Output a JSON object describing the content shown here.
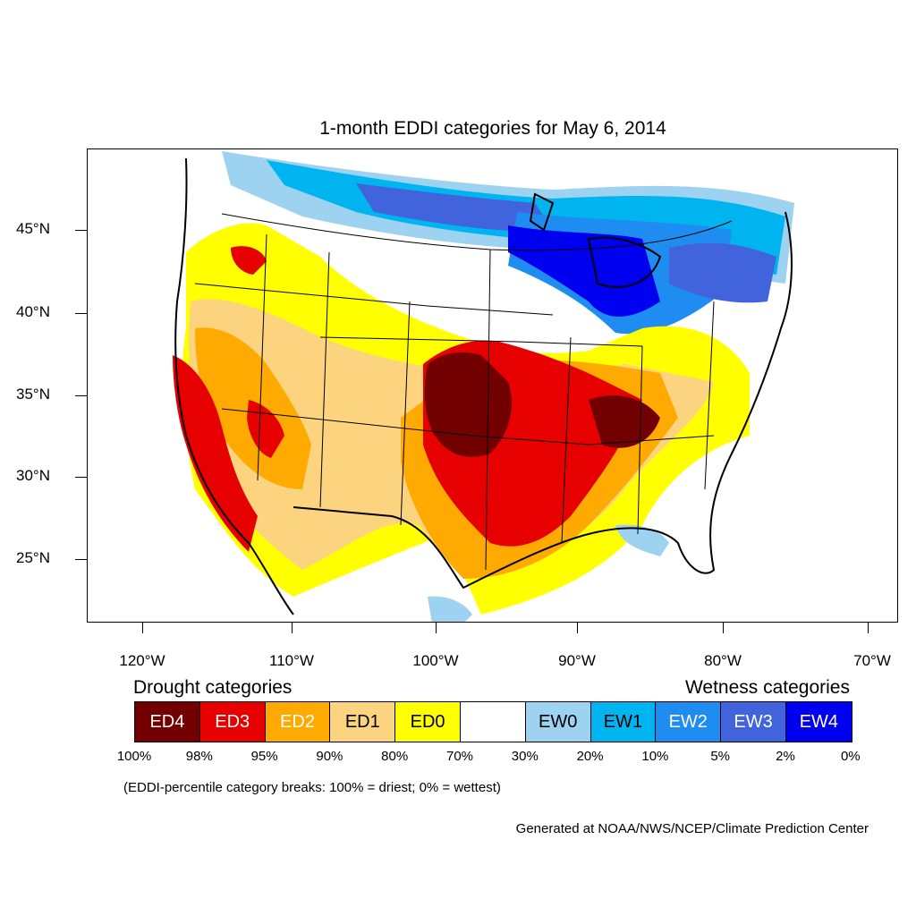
{
  "title": "1-month EDDI categories for May 6, 2014",
  "latitude_labels": [
    "45°N",
    "40°N",
    "35°N",
    "30°N",
    "25°N"
  ],
  "longitude_labels": [
    "120°W",
    "110°W",
    "100°W",
    "90°W",
    "80°W",
    "70°W"
  ],
  "legend": {
    "drought_heading": "Drought categories",
    "wetness_heading": "Wetness categories",
    "categories": [
      {
        "label": "ED4",
        "color": "#730000",
        "text_color": "#ffffff"
      },
      {
        "label": "ED3",
        "color": "#e60000",
        "text_color": "#ffffff"
      },
      {
        "label": "ED2",
        "color": "#ffaa00",
        "text_color": "#ffffff"
      },
      {
        "label": "ED1",
        "color": "#fcd37f",
        "text_color": "#000000"
      },
      {
        "label": "ED0",
        "color": "#ffff00",
        "text_color": "#000000"
      },
      {
        "label": "",
        "color": "#ffffff",
        "text_color": "#000000"
      },
      {
        "label": "EW0",
        "color": "#9dd2f0",
        "text_color": "#000000"
      },
      {
        "label": "EW1",
        "color": "#00b4f0",
        "text_color": "#000000"
      },
      {
        "label": "EW2",
        "color": "#1e8cf0",
        "text_color": "#ffffff"
      },
      {
        "label": "EW3",
        "color": "#4164dc",
        "text_color": "#ffffff"
      },
      {
        "label": "EW4",
        "color": "#0000f0",
        "text_color": "#ffffff"
      }
    ],
    "percentile_breaks": [
      "100%",
      "98%",
      "95%",
      "90%",
      "80%",
      "70%",
      "30%",
      "20%",
      "10%",
      "5%",
      "2%",
      "0%"
    ]
  },
  "footnote": "(EDDI-percentile category breaks: 100% = driest; 0% = wettest)",
  "credit": "Generated at NOAA/NWS/NCEP/Climate Prediction Center"
}
